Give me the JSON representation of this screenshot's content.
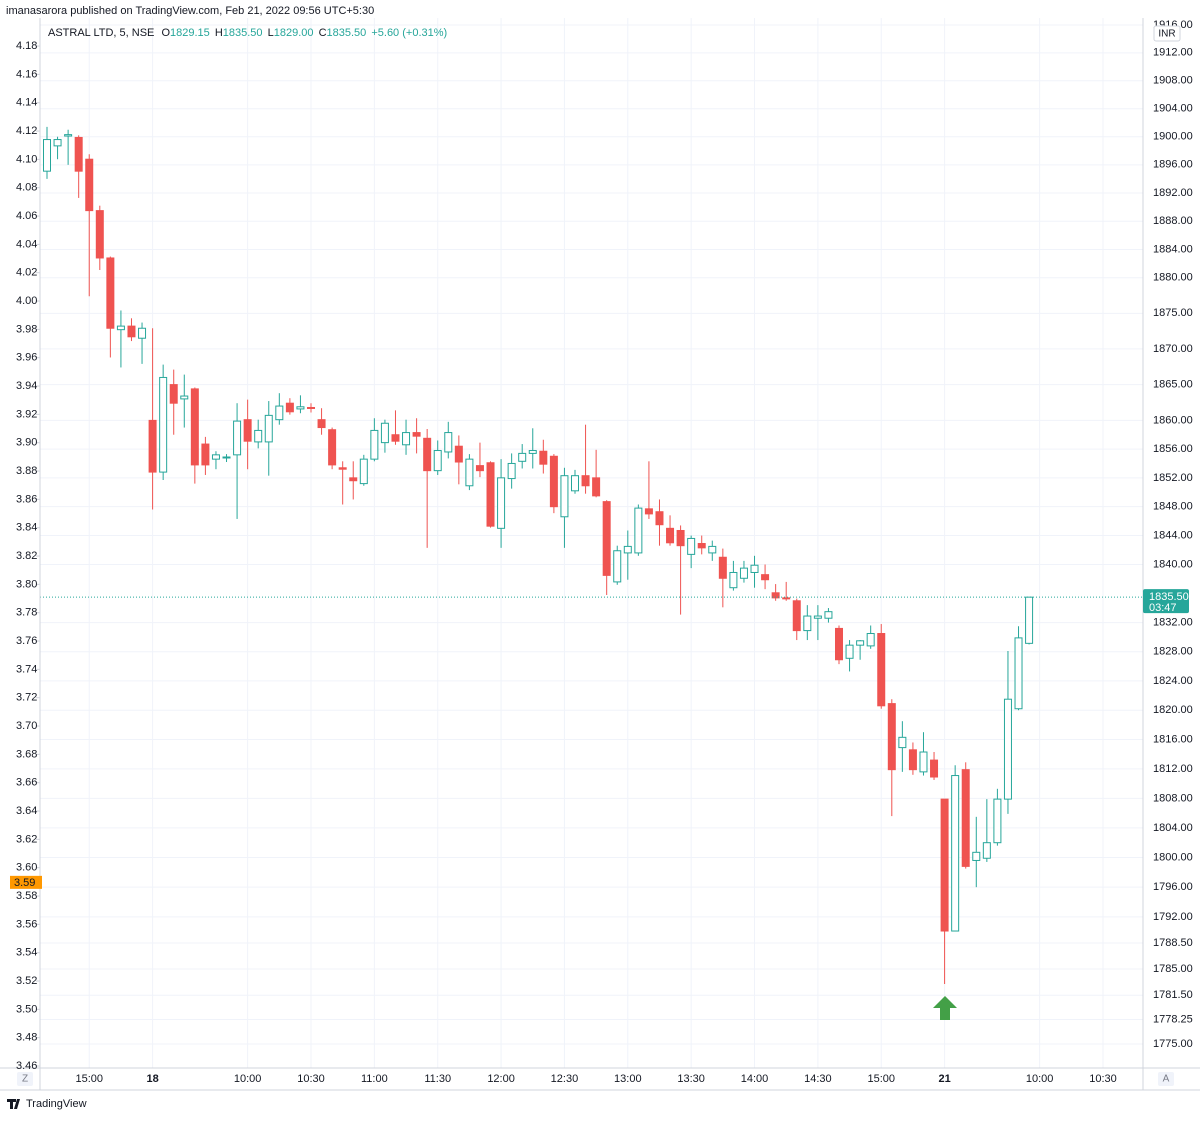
{
  "publisher": "imanasarora published on TradingView.com, Feb 21, 2022 09:56 UTC+5:30",
  "footer": "TradingView",
  "chart_data": {
    "type": "candlestick",
    "header": {
      "symbol": "ASTRAL LTD, 5, NSE",
      "o_key": "O",
      "o": "1829.15",
      "h_key": "H",
      "h": "1835.50",
      "l_key": "L",
      "l": "1829.00",
      "c_key": "C",
      "c": "1835.50",
      "change": "+5.60 (+0.31%)"
    },
    "currency": "INR",
    "scale_buttons": [
      "Z",
      "A"
    ],
    "categories": [
      null,
      null,
      null,
      null,
      "15:00",
      null,
      null,
      null,
      null,
      null,
      "18",
      null,
      null,
      null,
      null,
      null,
      null,
      null,
      null,
      "10:00",
      null,
      null,
      null,
      null,
      null,
      "10:30",
      null,
      null,
      null,
      null,
      null,
      "11:00",
      null,
      null,
      null,
      null,
      null,
      "11:30",
      null,
      null,
      null,
      null,
      null,
      "12:00",
      null,
      null,
      null,
      null,
      null,
      "12:30",
      null,
      null,
      null,
      null,
      null,
      "13:00",
      null,
      null,
      null,
      null,
      null,
      "13:30",
      null,
      null,
      null,
      null,
      null,
      "14:00",
      null,
      null,
      null,
      null,
      null,
      "14:30",
      null,
      null,
      null,
      null,
      null,
      "15:00",
      null,
      null,
      null,
      null,
      null,
      "21",
      null,
      null,
      null,
      null,
      null,
      null,
      null,
      null,
      "10:00",
      null,
      null,
      null,
      null,
      null,
      "10:30",
      null,
      null,
      null
    ],
    "series": [
      {
        "name": "ASTRAL LTD, 5, NSE",
        "up_color": "#26a69a",
        "down_color": "#ef5350",
        "open": [
          1895.1,
          1898.7,
          1900.1,
          1899.9,
          1896.8,
          1889.5,
          1882.8,
          1872.7,
          1873.2,
          1871.5,
          1860,
          1852.8,
          1865,
          1863,
          1864.4,
          1856.7,
          1854.6,
          1854.8,
          1855.2,
          1860.1,
          1857,
          1857,
          1860.1,
          1862.4,
          1861.6,
          1861.8,
          1860.1,
          1858.7,
          1853.4,
          1852,
          1851.2,
          1854.6,
          1856.9,
          1858,
          1856.6,
          1858.3,
          1857.5,
          1853,
          1855.6,
          1856.4,
          1850.9,
          1853.7,
          1854.1,
          1845,
          1851.9,
          1854.3,
          1855.4,
          1855.7,
          1855,
          1846.6,
          1850.2,
          1852.3,
          1852,
          1848.7,
          1837.6,
          1841.6,
          1841.6,
          1847.7,
          1847.3,
          1845,
          1844.7,
          1841.4,
          1842.9,
          1841.6,
          1841,
          1836.8,
          1838.1,
          1838.9,
          1838.6,
          1836.1,
          1835.4,
          1835,
          1830.9,
          1832.6,
          1832.6,
          1831.2,
          1827.1,
          1828.9,
          1828.8,
          1830.5,
          1820.9,
          1814.9,
          1814.6,
          1811.6,
          1813.2,
          1807.9,
          1790.1,
          1811.9,
          1799.6,
          1799.9,
          1802,
          1807.9,
          1820.2,
          1829.15,
          null,
          null,
          null,
          null,
          null,
          null,
          null,
          null,
          null,
          null
        ],
        "high": [
          1901.4,
          1900,
          1901,
          1900.2,
          1897.5,
          1890.2,
          1883,
          1875.4,
          1874.3,
          1873.7,
          1872.9,
          1867.8,
          1867.1,
          1866.4,
          1864.6,
          1857.7,
          1855.7,
          1855.3,
          1862.4,
          1862.9,
          1860.1,
          1862.7,
          1863.8,
          1863.1,
          1863.5,
          1862.4,
          1861.7,
          1859,
          1854.3,
          1854.3,
          1855.2,
          1860.3,
          1860.1,
          1861.4,
          1860.1,
          1860.3,
          1858.8,
          1857.2,
          1859.8,
          1857.9,
          1855.3,
          1856.9,
          1854.3,
          1854.6,
          1855.4,
          1856.7,
          1858.9,
          1857.3,
          1855.3,
          1853.4,
          1853.1,
          1859.4,
          1855.9,
          1848.9,
          1842.6,
          1844.7,
          1848.3,
          1854.3,
          1849,
          1846.8,
          1845.4,
          1844,
          1844,
          1843.3,
          1842.2,
          1840.5,
          1840.5,
          1841.2,
          1840,
          1837.3,
          1837.6,
          1835.3,
          1834.4,
          1834.4,
          1834,
          1831.6,
          1829.6,
          1829.6,
          1831.6,
          1831.8,
          1821.5,
          1818.5,
          1815.6,
          1817,
          1814.3,
          1807.9,
          1812.5,
          1812.9,
          1805.5,
          1807.9,
          1809.3,
          1828.1,
          1831.5,
          1835.5,
          null,
          null,
          null,
          null,
          null,
          null,
          null,
          null,
          null,
          null
        ],
        "low": [
          1894,
          1896.8,
          1896,
          1891.3,
          1877.4,
          1881.1,
          1868.8,
          1867.4,
          1871.1,
          1867.9,
          1847.6,
          1851.7,
          1858,
          1859,
          1851.2,
          1852.4,
          1853.2,
          1854.2,
          1846.3,
          1853.2,
          1856.1,
          1852.3,
          1859.4,
          1860.8,
          1861,
          1861.1,
          1858,
          1853.2,
          1848.3,
          1849,
          1850.9,
          1854.3,
          1855.5,
          1856.6,
          1855.2,
          1855.4,
          1842.3,
          1852.4,
          1854.7,
          1851.1,
          1850.3,
          1852.1,
          1845.1,
          1842.3,
          1850.5,
          1853.3,
          1853.3,
          1852.6,
          1847.1,
          1842.3,
          1849.8,
          1849.8,
          1849.3,
          1835.8,
          1837.2,
          1837.9,
          1841.2,
          1846.3,
          1842.6,
          1842.6,
          1833.1,
          1839.5,
          1841.4,
          1840.5,
          1834.1,
          1836.4,
          1837.5,
          1836.8,
          1836.6,
          1835,
          1835,
          1829.6,
          1829.6,
          1829.6,
          1832,
          1826.3,
          1825.3,
          1826.9,
          1828.4,
          1820.2,
          1805.6,
          1811.6,
          1811.2,
          1811.1,
          1810.5,
          1783,
          1790.1,
          1798.5,
          1796,
          1799.4,
          1801.6,
          1805.9,
          1820,
          1829,
          null,
          null,
          null,
          null,
          null,
          null,
          null,
          null,
          null,
          null
        ],
        "close": [
          1899.6,
          1899.6,
          1900.3,
          1895.1,
          1889.5,
          1882.8,
          1872.9,
          1873.2,
          1871.7,
          1872.9,
          1852.8,
          1866,
          1862.4,
          1863.4,
          1853.8,
          1853.8,
          1855.2,
          1854.9,
          1859.9,
          1857.1,
          1858.6,
          1860.7,
          1862,
          1861.2,
          1861.9,
          1861.7,
          1859,
          1853.8,
          1853.2,
          1851.6,
          1854.6,
          1858.6,
          1859.6,
          1857.1,
          1858.3,
          1857.8,
          1853,
          1855.8,
          1858.3,
          1854.2,
          1854.6,
          1853,
          1845.3,
          1852,
          1854,
          1855.4,
          1855.8,
          1853.9,
          1848,
          1852.3,
          1852.3,
          1850.9,
          1849.5,
          1838.5,
          1841.9,
          1842.5,
          1847.8,
          1847,
          1845.5,
          1843,
          1842.6,
          1843.6,
          1842.3,
          1842.5,
          1838.1,
          1838.9,
          1839.5,
          1839.9,
          1837.9,
          1835.4,
          1835.3,
          1830.9,
          1832.9,
          1832.9,
          1833.5,
          1826.9,
          1828.9,
          1829.5,
          1830.5,
          1820.6,
          1811.9,
          1816.3,
          1811.9,
          1814.3,
          1810.9,
          1790.1,
          1811.1,
          1798.8,
          1800.7,
          1802,
          1807.9,
          1821.5,
          1829.9,
          1835.5,
          null,
          null,
          null,
          null,
          null,
          null,
          null,
          null,
          null,
          null
        ]
      }
    ],
    "last_price_label": "1835.50",
    "countdown": "03:47",
    "log_scale": true,
    "grid": true,
    "ylim": [
      1771.8,
      1917
    ],
    "yticks": [
      {
        "value": 1916,
        "label": "1916.00"
      },
      {
        "value": 1912,
        "label": "1912.00"
      },
      {
        "value": 1908,
        "label": "1908.00"
      },
      {
        "value": 1904,
        "label": "1904.00"
      },
      {
        "value": 1900,
        "label": "1900.00"
      },
      {
        "value": 1896,
        "label": "1896.00"
      },
      {
        "value": 1892,
        "label": "1892.00"
      },
      {
        "value": 1888,
        "label": "1888.00"
      },
      {
        "value": 1884,
        "label": "1884.00"
      },
      {
        "value": 1880,
        "label": "1880.00"
      },
      {
        "value": 1875,
        "label": "1875.00"
      },
      {
        "value": 1870,
        "label": "1870.00"
      },
      {
        "value": 1865,
        "label": "1865.00"
      },
      {
        "value": 1860,
        "label": "1860.00"
      },
      {
        "value": 1856,
        "label": "1856.00"
      },
      {
        "value": 1852,
        "label": "1852.00"
      },
      {
        "value": 1848,
        "label": "1848.00"
      },
      {
        "value": 1844,
        "label": "1844.00"
      },
      {
        "value": 1840,
        "label": "1840.00"
      },
      {
        "value": 1832,
        "label": "1832.00"
      },
      {
        "value": 1828,
        "label": "1828.00"
      },
      {
        "value": 1824,
        "label": "1824.00"
      },
      {
        "value": 1820,
        "label": "1820.00"
      },
      {
        "value": 1816,
        "label": "1816.00"
      },
      {
        "value": 1812,
        "label": "1812.00"
      },
      {
        "value": 1808,
        "label": "1808.00"
      },
      {
        "value": 1804,
        "label": "1804.00"
      },
      {
        "value": 1800,
        "label": "1800.00"
      },
      {
        "value": 1796,
        "label": "1796.00"
      },
      {
        "value": 1792,
        "label": "1792.00"
      },
      {
        "value": 1788.5,
        "label": "1788.50"
      },
      {
        "value": 1785,
        "label": "1785.00"
      },
      {
        "value": 1781.5,
        "label": "1781.50"
      },
      {
        "value": 1778.25,
        "label": "1778.25"
      },
      {
        "value": 1775,
        "label": "1775.00"
      }
    ],
    "y2lim": [
      3.4586,
      4.1998
    ],
    "y2ticks": [
      4.18,
      4.16,
      4.14,
      4.12,
      {
        "value": 4.1,
        "label": "4.10"
      },
      4.08,
      4.06,
      4.04,
      4.02,
      {
        "value": 4,
        "label": "4.00"
      },
      3.98,
      3.96,
      3.94,
      3.92,
      {
        "value": 3.9,
        "label": "3.90"
      },
      3.88,
      3.86,
      3.84,
      3.82,
      {
        "value": 3.8,
        "label": "3.80"
      },
      3.78,
      3.76,
      3.74,
      3.72,
      {
        "value": 3.7,
        "label": "3.70"
      },
      3.68,
      3.66,
      3.64,
      3.62,
      {
        "value": 3.6,
        "label": "3.60"
      },
      3.58,
      3.56,
      3.54,
      3.52,
      {
        "value": 3.5,
        "label": "3.50"
      },
      3.48,
      3.46
    ],
    "y2_marker": 3.59
  }
}
